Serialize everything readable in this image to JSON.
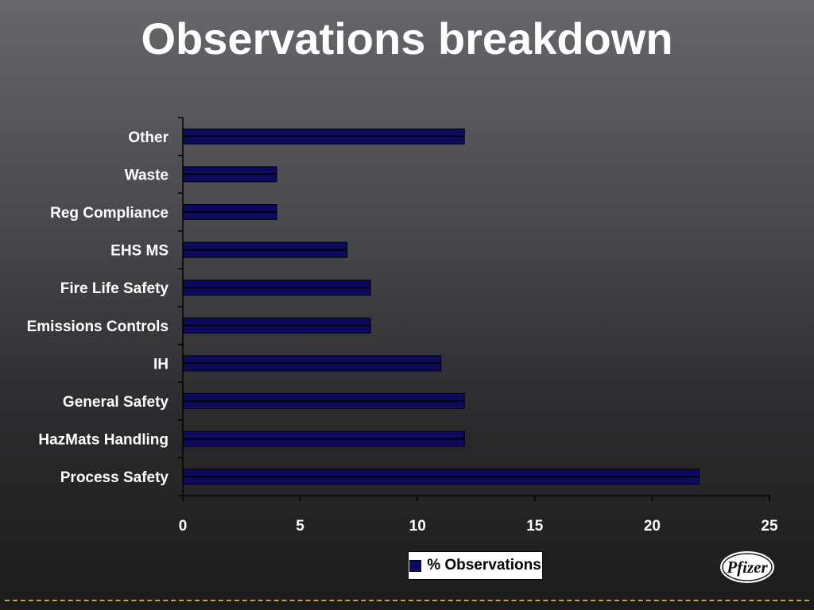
{
  "slide": {
    "title": "Observations breakdown",
    "logo_text": "Pfizer"
  },
  "colors": {
    "bar_fill": "#0b0a5c",
    "bar_stripe": "#000000",
    "axis": "#000000",
    "dash_line": "#c9a23a"
  },
  "chart_data": {
    "type": "bar",
    "orientation": "horizontal",
    "categories": [
      "Process Safety",
      "HazMats Handling",
      "General Safety",
      "IH",
      "Emissions Controls",
      "Fire Life Safety",
      "EHS MS",
      "Reg Compliance",
      "Waste",
      "Other"
    ],
    "series": [
      {
        "name": "% Observations",
        "values": [
          22,
          12,
          12,
          11,
          8,
          8,
          7,
          4,
          4,
          12
        ]
      }
    ],
    "xlim": [
      0,
      25
    ],
    "xticks": [
      0,
      5,
      10,
      15,
      20,
      25
    ],
    "grid": false,
    "legend": "bottom-center"
  }
}
